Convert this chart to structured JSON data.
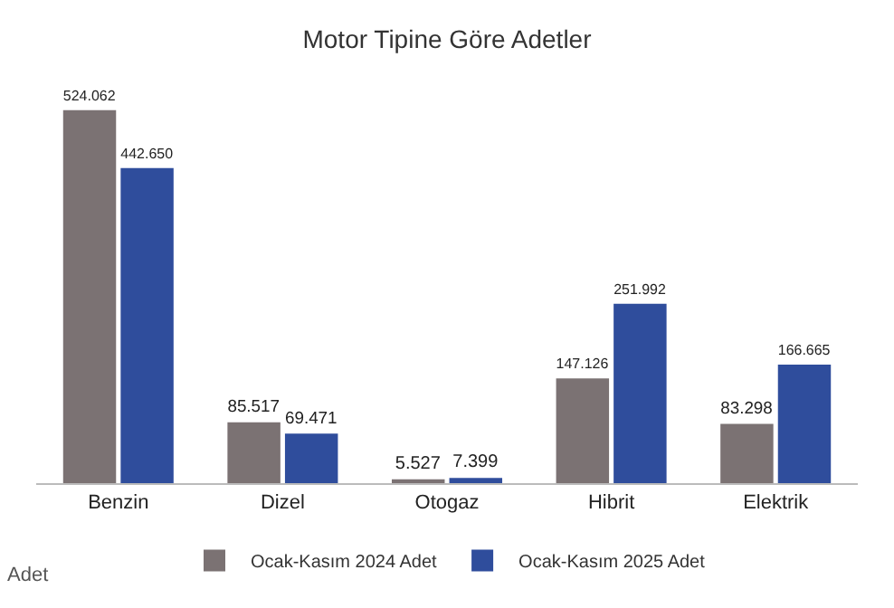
{
  "chart_data": {
    "type": "bar",
    "title": "Motor Tipine Göre Adetler",
    "categories": [
      "Benzin",
      "Dizel",
      "Otogaz",
      "Hibrit",
      "Elektrik"
    ],
    "series": [
      {
        "name": "Ocak-Kasım 2024 Adet",
        "color": "#7b7273",
        "values": [
          524062,
          85517,
          5527,
          147126,
          83298
        ],
        "value_labels": [
          "524.062",
          "85.517",
          "5.527",
          "147.126",
          "83.298"
        ]
      },
      {
        "name": "Ocak-Kasım 2025 Adet",
        "color": "#2f4d9c",
        "values": [
          442650,
          69471,
          7399,
          251992,
          166665
        ],
        "value_labels": [
          "442.650",
          "69.471",
          "7.399",
          "251.992",
          "166.665"
        ]
      }
    ],
    "annotations": [
      "Adet"
    ],
    "legend": "bottom",
    "grid": false
  }
}
